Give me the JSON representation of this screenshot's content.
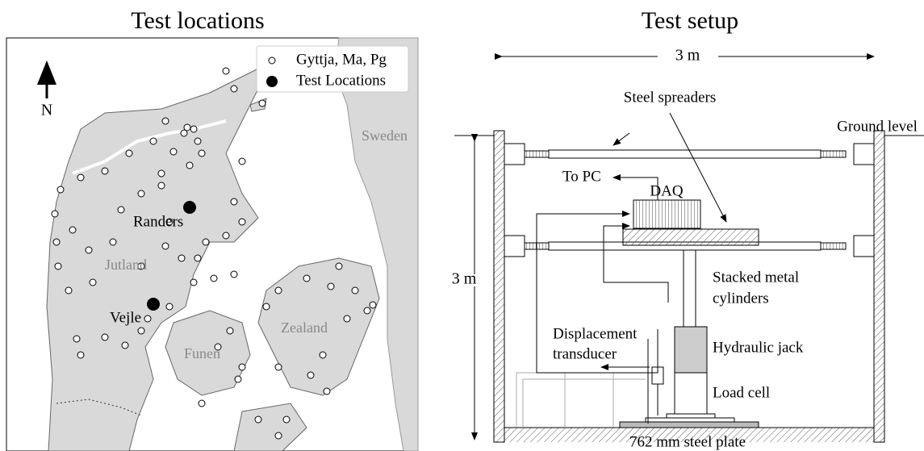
{
  "left_panel": {
    "title": "Test locations",
    "legend": [
      "Gyttja, Ma, Pg",
      "Test Locations"
    ],
    "north": "N",
    "places": [
      "Sweden",
      "Randers",
      "Jutland",
      "Vejle",
      "Zealand",
      "Funen"
    ]
  },
  "right_panel": {
    "title": "Test setup",
    "width_dim": "3 m",
    "height_dim": "3 m",
    "labels": [
      "Steel spreaders",
      "Ground level",
      "To PC",
      "DAQ",
      "Stacked metal",
      "cylinders",
      "Displacement",
      "transducer",
      "Hydraulic jack",
      "Load cell",
      "762 mm steel plate"
    ]
  }
}
